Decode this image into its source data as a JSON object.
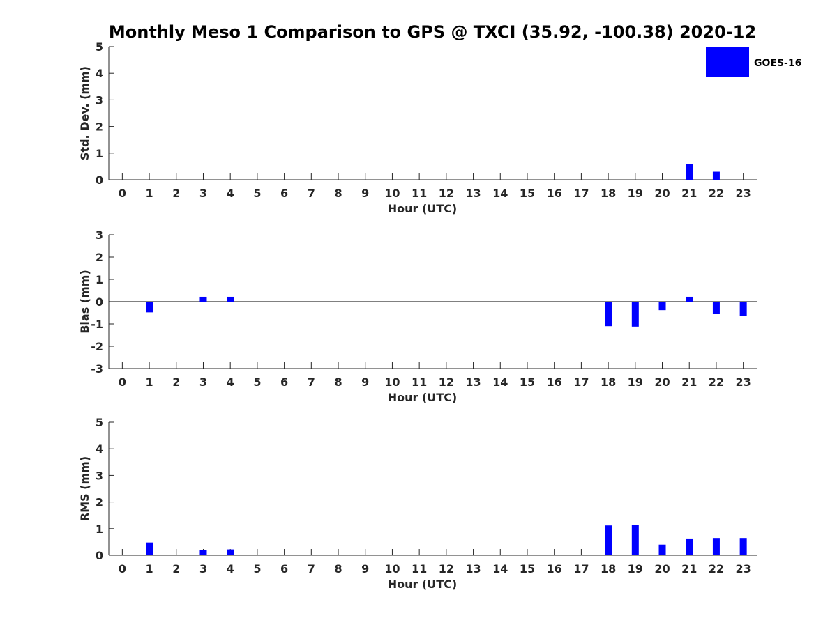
{
  "title": "Monthly Meso 1 Comparison to GPS @ TXCI (35.92, -100.38) 2020-12",
  "legend": {
    "label": "GOES-16",
    "color": "#0000ff"
  },
  "chart_data": [
    {
      "type": "bar",
      "ylabel": "Std. Dev. (mm)",
      "xlabel": "Hour (UTC)",
      "ylim": [
        0,
        5
      ],
      "yticks": [
        0,
        1,
        2,
        3,
        4,
        5
      ],
      "categories": [
        "0",
        "1",
        "2",
        "3",
        "4",
        "5",
        "6",
        "7",
        "8",
        "9",
        "10",
        "11",
        "12",
        "13",
        "14",
        "15",
        "16",
        "17",
        "18",
        "19",
        "20",
        "21",
        "22",
        "23"
      ],
      "series": [
        {
          "name": "GOES-16",
          "color": "#0000ff",
          "values": [
            null,
            null,
            null,
            null,
            null,
            null,
            null,
            null,
            null,
            null,
            null,
            null,
            null,
            null,
            null,
            null,
            null,
            null,
            null,
            null,
            null,
            0.6,
            0.3,
            null
          ]
        }
      ],
      "zero_line": false
    },
    {
      "type": "bar",
      "ylabel": "Bias (mm)",
      "xlabel": "Hour (UTC)",
      "ylim": [
        -3,
        3
      ],
      "yticks": [
        -3,
        -2,
        -1,
        0,
        1,
        2,
        3
      ],
      "categories": [
        "0",
        "1",
        "2",
        "3",
        "4",
        "5",
        "6",
        "7",
        "8",
        "9",
        "10",
        "11",
        "12",
        "13",
        "14",
        "15",
        "16",
        "17",
        "18",
        "19",
        "20",
        "21",
        "22",
        "23"
      ],
      "series": [
        {
          "name": "GOES-16",
          "color": "#0000ff",
          "values": [
            null,
            -0.48,
            null,
            0.22,
            0.22,
            null,
            null,
            null,
            null,
            null,
            null,
            null,
            null,
            null,
            null,
            null,
            null,
            null,
            -1.1,
            -1.12,
            -0.38,
            0.22,
            -0.55,
            -0.63
          ]
        }
      ],
      "zero_line": true
    },
    {
      "type": "bar",
      "ylabel": "RMS (mm)",
      "xlabel": "Hour (UTC)",
      "ylim": [
        0,
        5
      ],
      "yticks": [
        0,
        1,
        2,
        3,
        4,
        5
      ],
      "categories": [
        "0",
        "1",
        "2",
        "3",
        "4",
        "5",
        "6",
        "7",
        "8",
        "9",
        "10",
        "11",
        "12",
        "13",
        "14",
        "15",
        "16",
        "17",
        "18",
        "19",
        "20",
        "21",
        "22",
        "23"
      ],
      "series": [
        {
          "name": "GOES-16",
          "color": "#0000ff",
          "values": [
            null,
            0.48,
            null,
            0.2,
            0.22,
            null,
            null,
            null,
            null,
            null,
            null,
            null,
            null,
            null,
            null,
            null,
            null,
            null,
            1.12,
            1.15,
            0.4,
            0.63,
            0.65,
            0.65
          ]
        }
      ],
      "zero_line": false
    }
  ]
}
